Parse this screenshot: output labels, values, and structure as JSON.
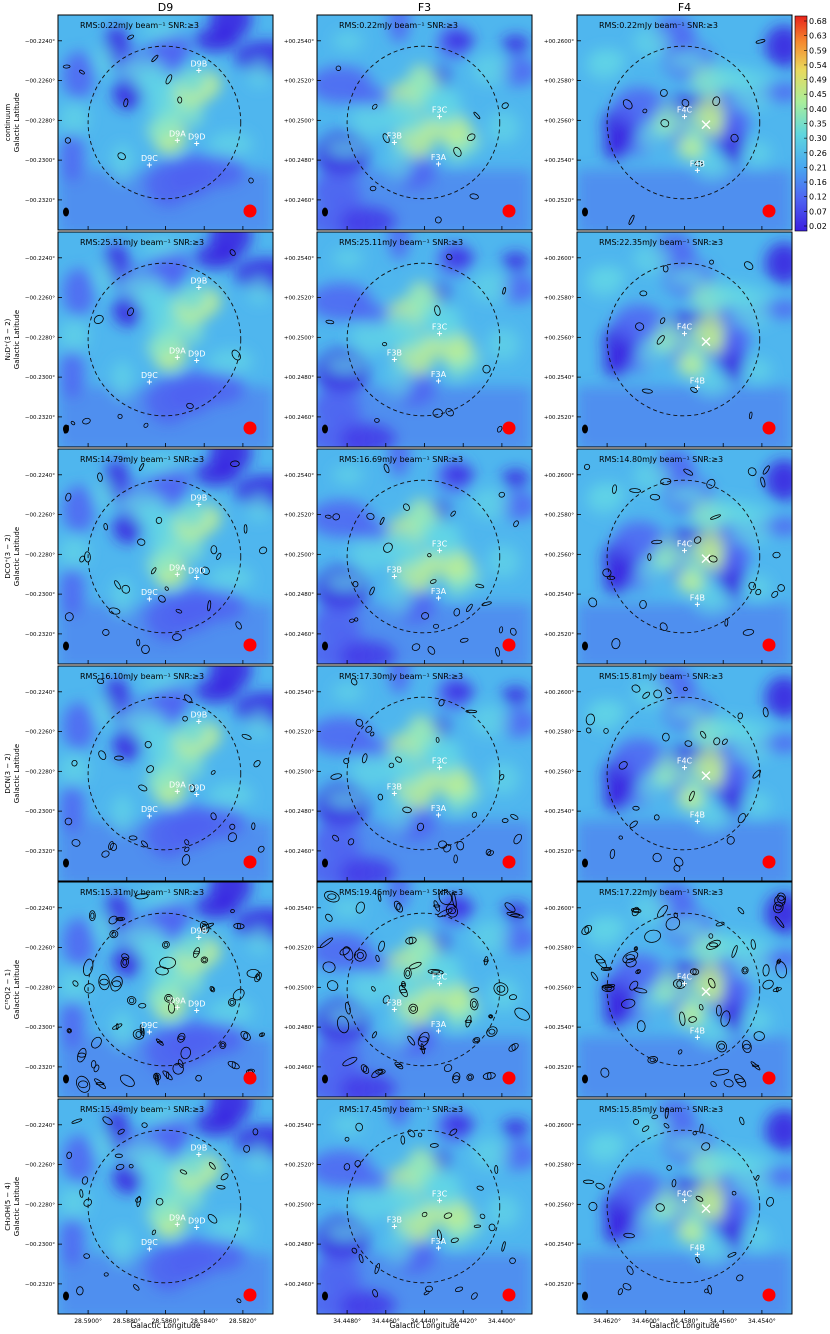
{
  "figure": {
    "columns": [
      {
        "name": "D9",
        "xticks": [
          "28.5900°",
          "28.5880°",
          "28.5860°",
          "28.5840°",
          "28.5820°"
        ],
        "yticks": [
          "−00.2240°",
          "−00.2260°",
          "−00.2280°",
          "−00.2300°",
          "−00.2320°"
        ],
        "sources": [
          [
            "D9B",
            0.655,
            0.23
          ],
          [
            "D9A",
            0.555,
            0.555
          ],
          [
            "D9D",
            0.645,
            0.57
          ],
          [
            "D9C",
            0.425,
            0.67
          ]
        ]
      },
      {
        "name": "F3",
        "xticks": [
          "34.4480°",
          "34.4460°",
          "34.4440°",
          "34.4420°",
          "34.4400°"
        ],
        "yticks": [
          "+00.2540°",
          "+00.2520°",
          "+00.2500°",
          "+00.2480°",
          "+00.2460°"
        ],
        "sources": [
          [
            "F3C",
            0.57,
            0.445
          ],
          [
            "F3B",
            0.36,
            0.565
          ],
          [
            "F3A",
            0.565,
            0.665
          ]
        ]
      },
      {
        "name": "F4",
        "xticks": [
          "34.4620°",
          "34.4600°",
          "34.4580°",
          "34.4560°",
          "34.4540°"
        ],
        "yticks": [
          "+00.2600°",
          "+00.2580°",
          "+00.2560°",
          "+00.2540°",
          "+00.2520°"
        ],
        "sources": [
          [
            "F4C",
            0.5,
            0.445
          ],
          [
            "F4B",
            0.56,
            0.695
          ]
        ]
      }
    ],
    "rows": [
      {
        "label": "continuum",
        "rms": [
          "RMS:0.22mJy beam⁻¹ SNR:≥3",
          "RMS:0.22mJy beam⁻¹ SNR:≥3",
          "RMS:0.22mJy beam⁻¹ SNR:≥3"
        ],
        "contours": "low"
      },
      {
        "label": "N₂D⁺(3 − 2)",
        "rms": [
          "RMS:25.51mJy beam⁻¹ SNR:≥3",
          "RMS:25.11mJy beam⁻¹ SNR:≥3",
          "RMS:22.35mJy beam⁻¹ SNR:≥3"
        ],
        "contours": "low"
      },
      {
        "label": "DCO⁺(3 − 2)",
        "rms": [
          "RMS:14.79mJy beam⁻¹ SNR:≥3",
          "RMS:16.69mJy beam⁻¹ SNR:≥3",
          "RMS:14.80mJy beam⁻¹ SNR:≥3"
        ],
        "contours": "medium"
      },
      {
        "label": "DCN(3 − 2)",
        "rms": [
          "RMS:16.10mJy beam⁻¹ SNR:≥3",
          "RMS:17.30mJy beam⁻¹ SNR:≥3",
          "RMS:15.81mJy beam⁻¹ SNR:≥3"
        ],
        "contours": "medium"
      },
      {
        "label": "C¹⁸O(2 − 1)",
        "rms": [
          "RMS:15.31mJy beam⁻¹ SNR:≥3",
          "RMS:19.46mJy beam⁻¹ SNR:≥3",
          "RMS:17.22mJy beam⁻¹ SNR:≥3"
        ],
        "contours": "high"
      },
      {
        "label": "CH₃OH(5 − 4)",
        "rms": [
          "RMS:15.49mJy beam⁻¹ SNR:≥3",
          "RMS:17.45mJy beam⁻¹ SNR:≥3",
          "RMS:15.85mJy beam⁻¹ SNR:≥3"
        ],
        "contours": "medium"
      }
    ],
    "ylabel": "Galactic Latitude",
    "xlabel": "Galactic Longitude",
    "colorbar_ticks": [
      "0.68",
      "0.63",
      "0.59",
      "0.54",
      "0.49",
      "0.45",
      "0.40",
      "0.35",
      "0.30",
      "0.26",
      "0.21",
      "0.16",
      "0.12",
      "0.07",
      "0.02"
    ],
    "colors": {
      "low": "#3a1ee0",
      "mid": "#5fd0e8",
      "high": "#d8f07a",
      "contour": "#000000",
      "marker": "#ffffff",
      "beam": "#ff0000"
    }
  },
  "chart_data": {
    "type": "heatmap",
    "colorbar": {
      "min": 0.02,
      "max": 0.68,
      "colormap": "rainbow (blue-cyan-yellow-red)"
    },
    "columns": [
      "D9",
      "F3",
      "F4"
    ],
    "rows": [
      "continuum",
      "N₂D⁺(3 − 2)",
      "DCO⁺(3 − 2)",
      "DCN(3 − 2)",
      "C¹⁸O(2 − 1)",
      "CH₃OH(5 − 4)"
    ],
    "snr_threshold": 3
  }
}
